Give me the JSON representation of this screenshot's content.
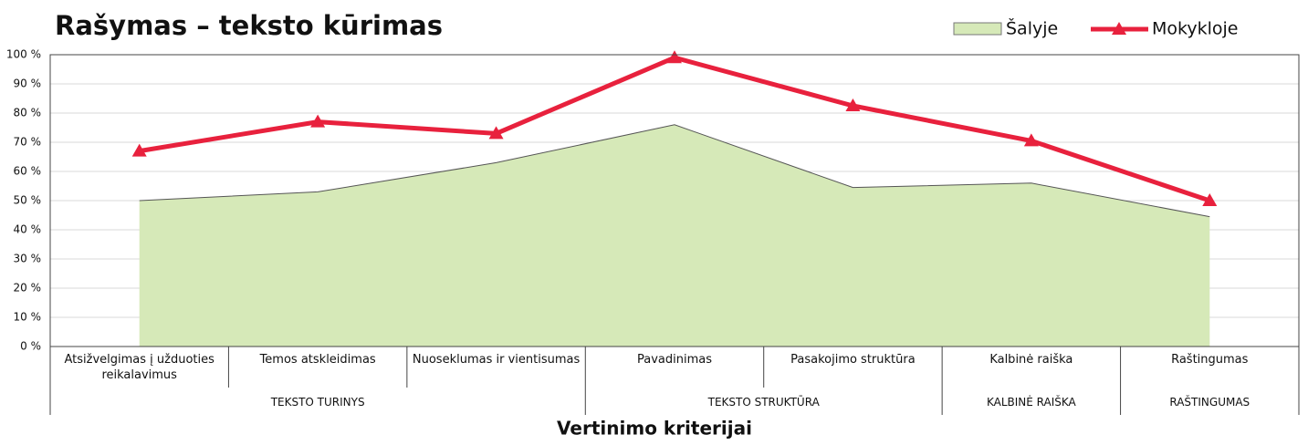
{
  "chart_data": {
    "type": "area-line",
    "title": "Rašymas – teksto kūrimas",
    "x_label": "Vertinimo kriterijai",
    "categories": [
      "Atsižvelgimas į užduoties reikalavimus",
      "Temos atskleidimas",
      "Nuoseklumas ir vientisumas",
      "Pavadinimas",
      "Pasakojimo struktūra",
      "Kalbinė raiška",
      "Raštingumas"
    ],
    "category_groups": [
      "TEKSTO TURINYS",
      "TEKSTO TURINYS",
      "TEKSTO TURINYS",
      "TEKSTO STRUKTŪRA",
      "TEKSTO STRUKTŪRA",
      "KALBINĖ RAIŠKA",
      "RAŠTINGUMAS"
    ],
    "series": [
      {
        "name": "Šalyje",
        "type": "area",
        "color": "#d6e9b8",
        "values": [
          50,
          53,
          63,
          76,
          54.5,
          56,
          44.5
        ]
      },
      {
        "name": "Mokykloje",
        "type": "line",
        "color": "#e8213d",
        "values": [
          67,
          77,
          73,
          99,
          82.5,
          70.5,
          50
        ]
      }
    ],
    "ylim": [
      0,
      100
    ],
    "yticks": [
      {
        "value": 0,
        "label": "0 %"
      },
      {
        "value": 10,
        "label": "10 %"
      },
      {
        "value": 20,
        "label": "20 %"
      },
      {
        "value": 30,
        "label": "30 %"
      },
      {
        "value": 40,
        "label": "40 %"
      },
      {
        "value": 50,
        "label": "50 %"
      },
      {
        "value": 60,
        "label": "60 %"
      },
      {
        "value": 70,
        "label": "70 %"
      },
      {
        "value": 80,
        "label": "80 %"
      },
      {
        "value": 90,
        "label": "90 %"
      },
      {
        "value": 100,
        "label": "100 %"
      }
    ],
    "grid": true,
    "legend": "top-right"
  }
}
